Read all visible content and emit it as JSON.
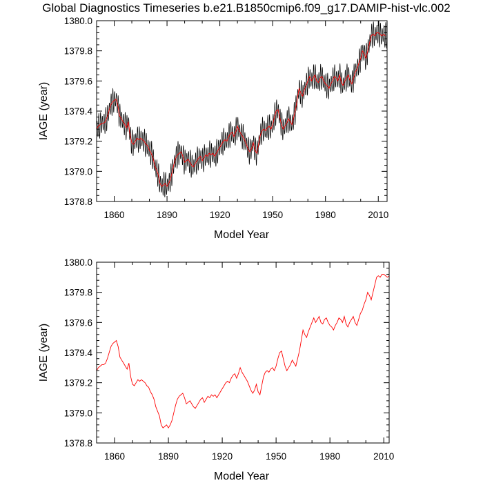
{
  "title": "Global Diagnostics Timeseries b.e21.B1850cmip6.f09_g17.DAMIP-hist-vlc.002",
  "colors": {
    "monthly": "#000000",
    "annual": "#ff0000",
    "axes": "#000000"
  },
  "chart_data": [
    {
      "type": "line",
      "xlabel": "Model Year",
      "ylabel": "IAGE (year)",
      "xlim": [
        1850,
        2015
      ],
      "ylim": [
        1378.8,
        1380.0
      ],
      "xticks": [
        "1860",
        "1890",
        "1920",
        "1950",
        "1980",
        "2010"
      ],
      "yticks": [
        "1378.8",
        "1379.0",
        "1379.2",
        "1379.4",
        "1379.6",
        "1379.8",
        "1380.0"
      ],
      "seasonal_amplitude": 0.09,
      "series": [
        {
          "role": "monthly",
          "color": "#000000",
          "style": "annual mean plus seasonal cycle"
        },
        {
          "role": "annual",
          "color": "#ff0000",
          "style": "annual mean"
        }
      ]
    },
    {
      "type": "line",
      "xlabel": "Model Year",
      "ylabel": "IAGE (year)",
      "xlim": [
        1850,
        2013
      ],
      "ylim": [
        1378.8,
        1380.0
      ],
      "xticks": [
        "1860",
        "1890",
        "1920",
        "1950",
        "1980",
        "2010"
      ],
      "yticks": [
        "1378.8",
        "1379.0",
        "1379.2",
        "1379.4",
        "1379.6",
        "1379.8",
        "1380.0"
      ],
      "series": [
        {
          "role": "annual",
          "color": "#ff0000"
        }
      ]
    }
  ],
  "annual_mean": {
    "years": [
      1850,
      1851,
      1852,
      1853,
      1854,
      1855,
      1856,
      1857,
      1858,
      1859,
      1860,
      1861,
      1862,
      1863,
      1864,
      1865,
      1866,
      1867,
      1868,
      1869,
      1870,
      1871,
      1872,
      1873,
      1874,
      1875,
      1876,
      1877,
      1878,
      1879,
      1880,
      1881,
      1882,
      1883,
      1884,
      1885,
      1886,
      1887,
      1888,
      1889,
      1890,
      1891,
      1892,
      1893,
      1894,
      1895,
      1896,
      1897,
      1898,
      1899,
      1900,
      1901,
      1902,
      1903,
      1904,
      1905,
      1906,
      1907,
      1908,
      1909,
      1910,
      1911,
      1912,
      1913,
      1914,
      1915,
      1916,
      1917,
      1918,
      1919,
      1920,
      1921,
      1922,
      1923,
      1924,
      1925,
      1926,
      1927,
      1928,
      1929,
      1930,
      1931,
      1932,
      1933,
      1934,
      1935,
      1936,
      1937,
      1938,
      1939,
      1940,
      1941,
      1942,
      1943,
      1944,
      1945,
      1946,
      1947,
      1948,
      1949,
      1950,
      1951,
      1952,
      1953,
      1954,
      1955,
      1956,
      1957,
      1958,
      1959,
      1960,
      1961,
      1962,
      1963,
      1964,
      1965,
      1966,
      1967,
      1968,
      1969,
      1970,
      1971,
      1972,
      1973,
      1974,
      1975,
      1976,
      1977,
      1978,
      1979,
      1980,
      1981,
      1982,
      1983,
      1984,
      1985,
      1986,
      1987,
      1988,
      1989,
      1990,
      1991,
      1992,
      1993,
      1994,
      1995,
      1996,
      1997,
      1998,
      1999,
      2000,
      2001,
      2002,
      2003,
      2004,
      2005,
      2006,
      2007,
      2008,
      2009,
      2010,
      2011,
      2012,
      2013,
      2014
    ],
    "values": [
      1379.28,
      1379.3,
      1379.31,
      1379.32,
      1379.32,
      1379.33,
      1379.36,
      1379.4,
      1379.44,
      1379.46,
      1379.47,
      1379.48,
      1379.44,
      1379.37,
      1379.35,
      1379.33,
      1379.31,
      1379.29,
      1379.33,
      1379.24,
      1379.19,
      1379.18,
      1379.2,
      1379.22,
      1379.21,
      1379.22,
      1379.21,
      1379.2,
      1379.18,
      1379.17,
      1379.14,
      1379.12,
      1379.09,
      1379.04,
      1379.01,
      1378.98,
      1378.92,
      1378.9,
      1378.91,
      1378.92,
      1378.9,
      1378.92,
      1378.95,
      1379.0,
      1379.05,
      1379.09,
      1379.11,
      1379.12,
      1379.13,
      1379.1,
      1379.06,
      1379.07,
      1379.08,
      1379.06,
      1379.04,
      1379.03,
      1379.05,
      1379.07,
      1379.09,
      1379.1,
      1379.07,
      1379.09,
      1379.11,
      1379.1,
      1379.12,
      1379.11,
      1379.12,
      1379.1,
      1379.12,
      1379.14,
      1379.16,
      1379.18,
      1379.2,
      1379.21,
      1379.2,
      1379.23,
      1379.25,
      1379.26,
      1379.23,
      1379.26,
      1379.3,
      1379.27,
      1379.25,
      1379.23,
      1379.21,
      1379.18,
      1379.15,
      1379.13,
      1379.15,
      1379.19,
      1379.14,
      1379.12,
      1379.18,
      1379.24,
      1379.27,
      1379.28,
      1379.27,
      1379.29,
      1379.3,
      1379.28,
      1379.31,
      1379.36,
      1379.4,
      1379.41,
      1379.36,
      1379.31,
      1379.28,
      1379.3,
      1379.32,
      1379.35,
      1379.33,
      1379.31,
      1379.36,
      1379.41,
      1379.48,
      1379.55,
      1379.52,
      1379.5,
      1379.54,
      1379.57,
      1379.6,
      1379.63,
      1379.6,
      1379.62,
      1379.64,
      1379.6,
      1379.59,
      1379.62,
      1379.63,
      1379.6,
      1379.58,
      1379.57,
      1379.55,
      1379.58,
      1379.6,
      1379.63,
      1379.62,
      1379.6,
      1379.64,
      1379.59,
      1379.57,
      1379.6,
      1379.62,
      1379.64,
      1379.6,
      1379.58,
      1379.62,
      1379.66,
      1379.68,
      1379.72,
      1379.75,
      1379.8,
      1379.78,
      1379.75,
      1379.8,
      1379.85,
      1379.9,
      1379.91,
      1379.9,
      1379.92,
      1379.92,
      1379.91,
      1379.9,
      1379.91,
      1379.9
    ]
  }
}
